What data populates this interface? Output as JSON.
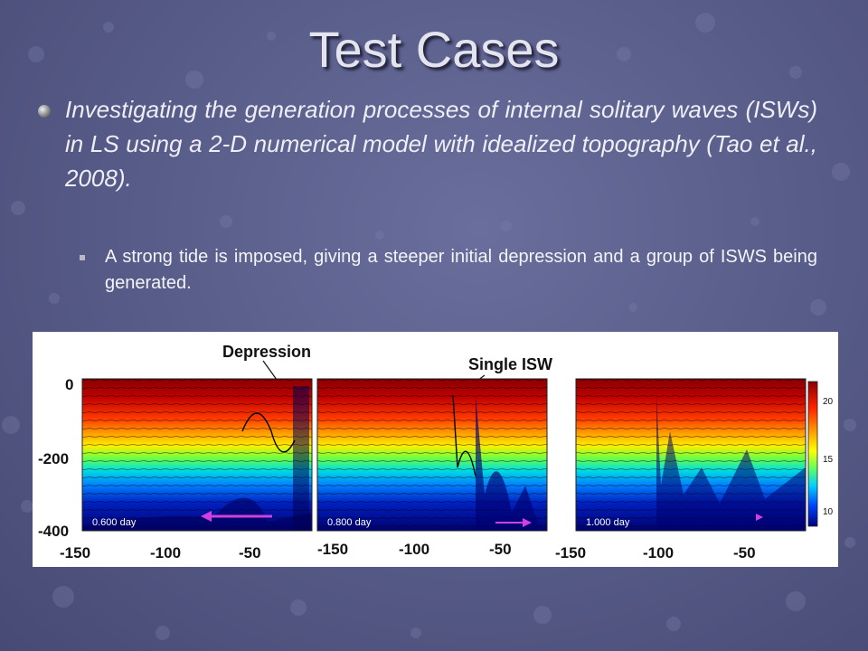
{
  "slide": {
    "title": "Test Cases",
    "bullet1_text": "Investigating the generation processes of internal solitary waves (ISWs) in LS using a 2-D numerical model with idealized topography (Tao et al., 2008).",
    "bullet2_text": "A strong tide is imposed, giving a steeper initial depression and a group of ISWS being generated."
  },
  "figure": {
    "annotation_depression": "Depression",
    "annotation_single_isw": "Single ISW",
    "y_ticks": [
      "0",
      "-200",
      "-400"
    ],
    "panels": [
      {
        "time_label": "0.600 day",
        "x_ticks": [
          "-150",
          "-100",
          "-50"
        ]
      },
      {
        "time_label": "0.800 day",
        "x_ticks": [
          "-150",
          "-100",
          "-50"
        ]
      },
      {
        "time_label": "1.000 day",
        "x_ticks": [
          "-150",
          "-100",
          "-50"
        ]
      }
    ],
    "colorbar_ticks": [
      "20",
      "15",
      "10"
    ],
    "colors": {
      "warm": "#b00000",
      "cool": "#00008c",
      "arrow": "#d040e0"
    }
  }
}
